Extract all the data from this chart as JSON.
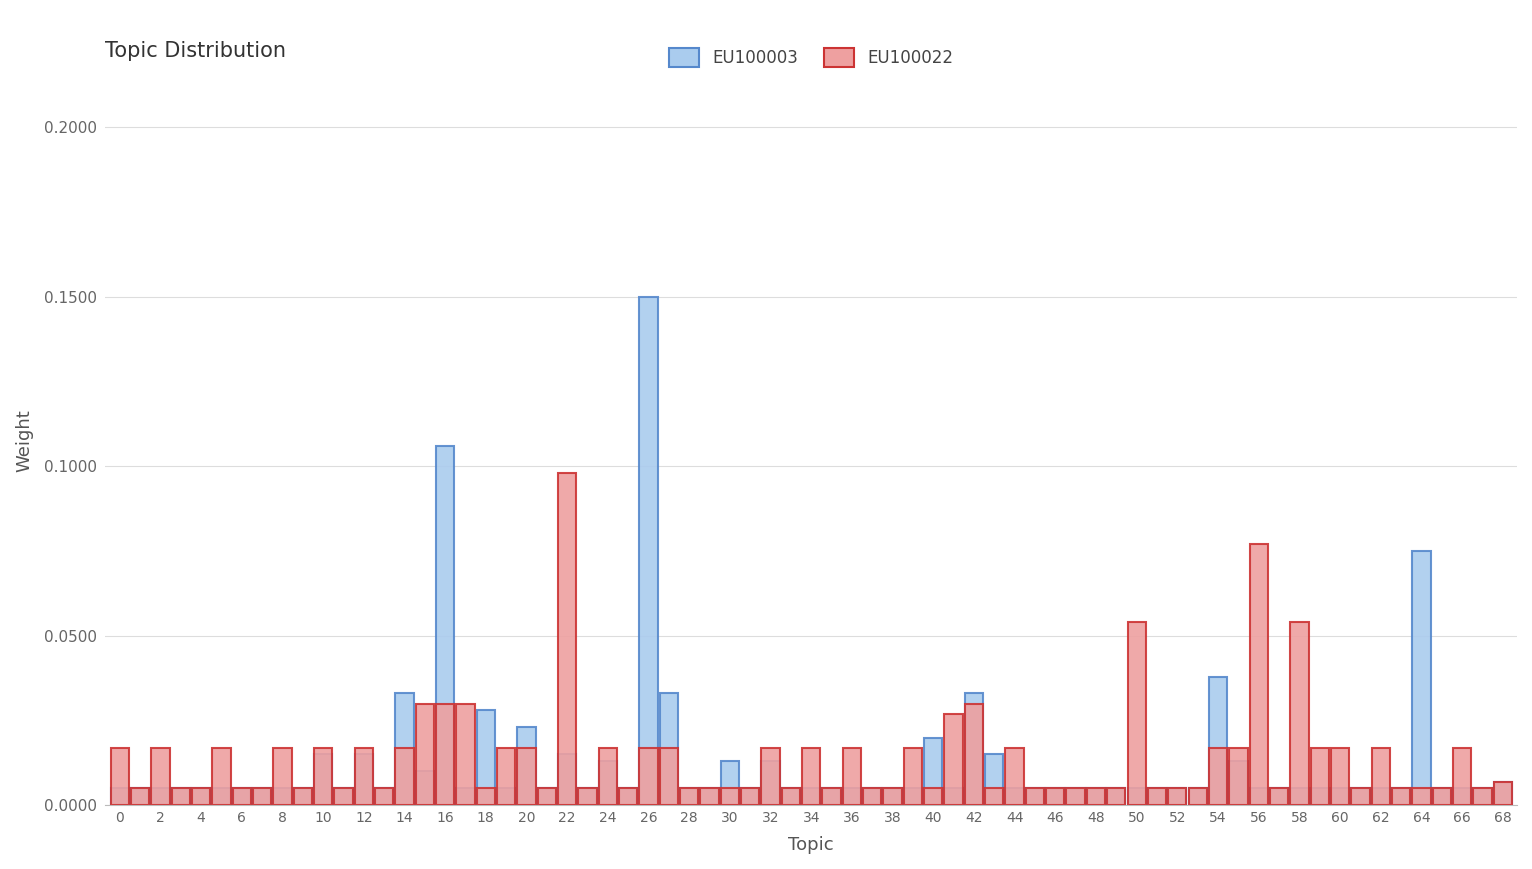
{
  "title": "Topic Distribution",
  "xlabel": "Topic",
  "ylabel": "Weight",
  "doc1_label": "EU100003",
  "doc2_label": "EU100022",
  "doc1_color": "#5588CC",
  "doc2_color": "#CC3333",
  "doc1_fill": "#AACCEE",
  "doc2_fill": "#EEA0A0",
  "ylim": [
    0.0,
    0.215
  ],
  "yticks": [
    0.0,
    0.05,
    0.1,
    0.15,
    0.2
  ],
  "ytick_labels": [
    "0.0000",
    "0.0500",
    "0.1000",
    "0.1500",
    "0.2000"
  ],
  "topics": [
    0,
    1,
    2,
    3,
    4,
    5,
    6,
    7,
    8,
    9,
    10,
    11,
    12,
    13,
    14,
    15,
    16,
    17,
    18,
    19,
    20,
    21,
    22,
    23,
    24,
    25,
    26,
    27,
    28,
    29,
    30,
    31,
    32,
    33,
    34,
    35,
    36,
    37,
    38,
    39,
    40,
    41,
    42,
    43,
    44,
    45,
    46,
    47,
    48,
    49,
    50,
    51,
    52,
    53,
    54,
    55,
    56,
    57,
    58,
    59,
    60,
    61,
    62,
    63,
    64,
    65,
    66,
    67,
    68
  ],
  "eu100003": [
    0.005,
    0.005,
    0.005,
    0.005,
    0.005,
    0.005,
    0.005,
    0.005,
    0.005,
    0.005,
    0.015,
    0.005,
    0.015,
    0.005,
    0.033,
    0.01,
    0.106,
    0.005,
    0.028,
    0.005,
    0.023,
    0.005,
    0.015,
    0.005,
    0.013,
    0.005,
    0.15,
    0.033,
    0.005,
    0.005,
    0.013,
    0.005,
    0.013,
    0.005,
    0.005,
    0.005,
    0.005,
    0.005,
    0.005,
    0.005,
    0.02,
    0.005,
    0.033,
    0.015,
    0.005,
    0.005,
    0.005,
    0.005,
    0.005,
    0.005,
    0.005,
    0.005,
    0.005,
    0.005,
    0.038,
    0.013,
    0.005,
    0.005,
    0.005,
    0.005,
    0.005,
    0.005,
    0.005,
    0.005,
    0.075,
    0.005,
    0.005,
    0.005,
    0.007
  ],
  "eu100022": [
    0.017,
    0.005,
    0.017,
    0.005,
    0.005,
    0.017,
    0.005,
    0.005,
    0.017,
    0.005,
    0.017,
    0.005,
    0.017,
    0.005,
    0.017,
    0.03,
    0.03,
    0.03,
    0.005,
    0.017,
    0.017,
    0.005,
    0.098,
    0.005,
    0.017,
    0.005,
    0.017,
    0.017,
    0.005,
    0.005,
    0.005,
    0.005,
    0.017,
    0.005,
    0.017,
    0.005,
    0.017,
    0.005,
    0.005,
    0.017,
    0.005,
    0.027,
    0.03,
    0.005,
    0.017,
    0.005,
    0.005,
    0.005,
    0.005,
    0.005,
    0.054,
    0.005,
    0.005,
    0.005,
    0.017,
    0.017,
    0.077,
    0.005,
    0.054,
    0.017,
    0.017,
    0.005,
    0.017,
    0.005,
    0.005,
    0.005,
    0.017,
    0.005,
    0.007
  ],
  "background_color": "#FFFFFF",
  "grid_color": "#DDDDDD",
  "spine_color": "#BBBBBB"
}
